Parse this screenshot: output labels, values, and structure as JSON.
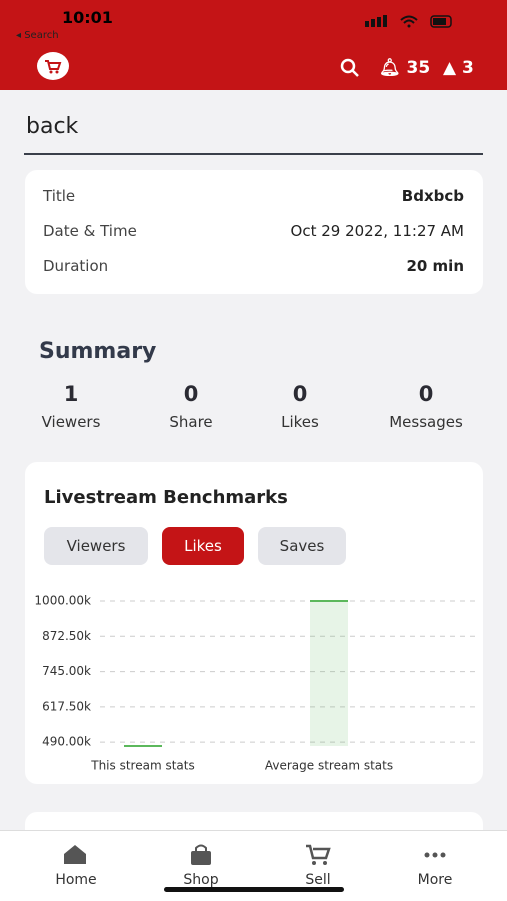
{
  "status": {
    "time": "10:01",
    "back": "Search"
  },
  "header": {
    "notifications": "35",
    "cart": "3"
  },
  "page_title": "back",
  "details": [
    [
      "Title",
      "Bdxbcb"
    ],
    [
      "Date & Time",
      "Oct 29 2022, 11:27 AM"
    ],
    [
      "Duration",
      "20 min"
    ]
  ],
  "summary": {
    "title": "Summary",
    "stats": [
      [
        1,
        "Viewers"
      ],
      [
        0,
        "Share"
      ],
      [
        0,
        "Likes"
      ],
      [
        0,
        "Messages"
      ]
    ]
  },
  "benchmarks": {
    "title": "Livestream Benchmarks",
    "tabs": [
      "Viewers",
      "Likes",
      "Saves"
    ]
  },
  "chart_data": {
    "type": "bar",
    "categories": [
      "This stream stats",
      "Average stream stats"
    ],
    "values": [
      476000,
      1000000
    ],
    "color": "#5cb85c",
    "ylim": [
      476000,
      1000000
    ],
    "yticks": [
      {
        "value": 490000,
        "label": "490.00k"
      },
      {
        "value": 617500,
        "label": "617.50k"
      },
      {
        "value": 745000,
        "label": "745.00k"
      },
      {
        "value": 872500,
        "label": "872.50k"
      },
      {
        "value": 1000000,
        "label": "1000.00k"
      }
    ],
    "grid": true
  },
  "nav": [
    "Home",
    "Shop",
    "Sell",
    "More"
  ]
}
